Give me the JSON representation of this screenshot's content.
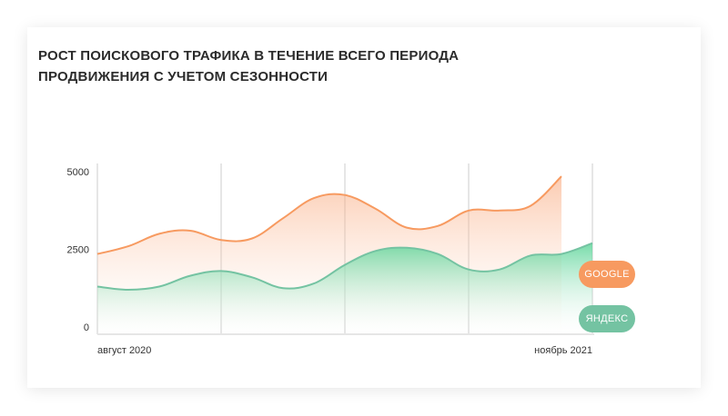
{
  "chart_data": {
    "type": "area",
    "title": "РОСТ ПОИСКОВОГО ТРАФИКА В ТЕЧЕНИЕ ВСЕГО ПЕРИОДА ПРОДВИЖЕНИЯ С УЧЕТОМ СЕЗОННОСТИ",
    "xlabel": "",
    "ylabel": "",
    "ylim": [
      0,
      5000
    ],
    "y_ticks": [
      "5000",
      "2500",
      "0"
    ],
    "x_tick_labels": [
      "август 2020",
      "ноябрь 2021"
    ],
    "grid": "vertical",
    "legend_position": "right",
    "x": [
      0,
      0.5,
      1,
      1.5,
      2,
      2.5,
      3,
      3.5,
      4,
      4.5,
      5,
      5.5,
      6,
      6.5,
      7,
      7.5,
      8
    ],
    "series": [
      {
        "name": "GOOGLE",
        "color": "#f79a60",
        "values": [
          2350,
          2600,
          3000,
          3100,
          2800,
          2850,
          3500,
          4150,
          4250,
          3800,
          3200,
          3250,
          3750,
          3750,
          3900,
          4850,
          null
        ]
      },
      {
        "name": "ЯНДЕКС",
        "color": "#74c3a2",
        "values": [
          1300,
          1200,
          1300,
          1650,
          1800,
          1600,
          1250,
          1400,
          2000,
          2450,
          2550,
          2350,
          1850,
          1850,
          2300,
          2350,
          2700
        ]
      }
    ]
  }
}
